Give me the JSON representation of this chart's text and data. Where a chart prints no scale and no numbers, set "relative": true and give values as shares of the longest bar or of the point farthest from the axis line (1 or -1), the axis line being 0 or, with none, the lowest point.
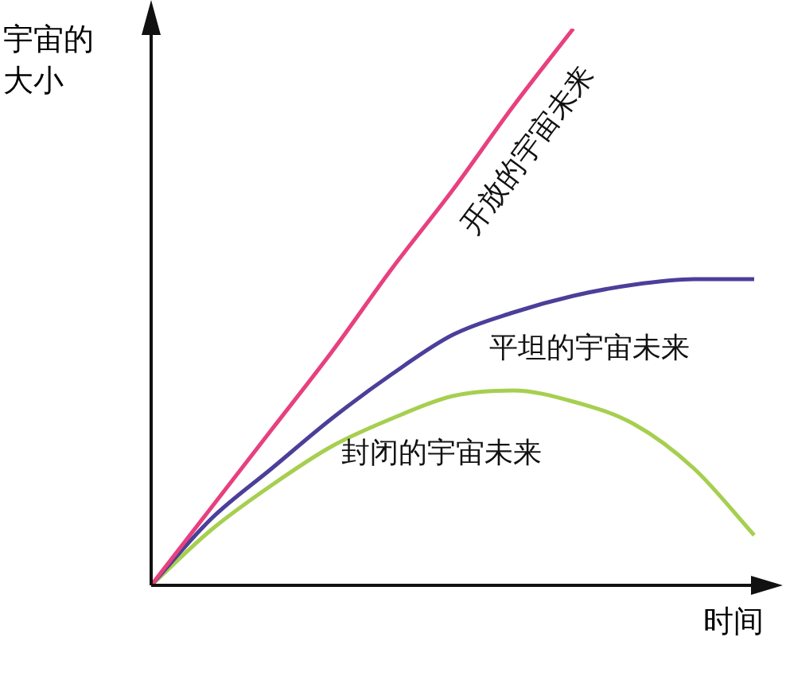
{
  "chart_data": {
    "type": "line",
    "relative": true,
    "xlabel": "时间",
    "ylabel": "宇宙的大小",
    "legend": false,
    "marker": "none",
    "categories": [
      null,
      null,
      null,
      null,
      null,
      null,
      null,
      null,
      null,
      null,
      null
    ],
    "series": [
      {
        "name": "开放的宇宙未来",
        "color": "#e8407f",
        "values": [
          0,
          0.14,
          0.28,
          0.42,
          0.57,
          0.71,
          0.86,
          1.0,
          null,
          null,
          null
        ]
      },
      {
        "name": "平坦的宇宙未来",
        "color": "#4b3f9a",
        "values": [
          0,
          0.12,
          0.21,
          0.3,
          0.38,
          0.45,
          0.49,
          0.52,
          0.54,
          0.55,
          0.55
        ]
      },
      {
        "name": "封闭的宇宙未来",
        "color": "#a6cf4f",
        "values": [
          0,
          0.1,
          0.18,
          0.25,
          0.3,
          0.34,
          0.35,
          0.33,
          0.29,
          0.21,
          0.09
        ]
      }
    ]
  }
}
